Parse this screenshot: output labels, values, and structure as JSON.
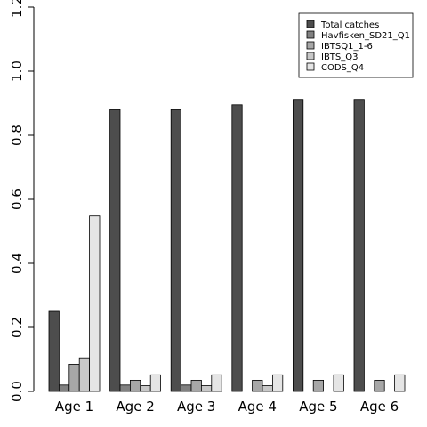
{
  "chart_data": {
    "type": "bar",
    "title": "",
    "xlabel": "",
    "ylabel": "",
    "ylim": [
      0,
      1.2
    ],
    "yticks": [
      "0.0",
      "0.2",
      "0.4",
      "0.6",
      "0.8",
      "1.0",
      "1.2"
    ],
    "categories": [
      "Age 1",
      "Age 2",
      "Age 3",
      "Age 4",
      "Age 5",
      "Age 6"
    ],
    "legend_position": "top-right",
    "series": [
      {
        "name": "Total catches",
        "color": "#4d4d4d",
        "values": [
          0.25,
          0.88,
          0.88,
          0.895,
          0.912,
          0.912
        ]
      },
      {
        "name": "Havfisken_SD21_Q1",
        "color": "#818181",
        "values": [
          0.02,
          0.02,
          0.02,
          0,
          0,
          0
        ]
      },
      {
        "name": "IBTSQ1_1-6",
        "color": "#a7a7a7",
        "values": [
          0.085,
          0.035,
          0.035,
          0.035,
          0.035,
          0.035
        ]
      },
      {
        "name": "IBTS_Q3",
        "color": "#c8c8c8",
        "values": [
          0.105,
          0.018,
          0.018,
          0.018,
          0,
          0
        ]
      },
      {
        "name": "CODS_Q4",
        "color": "#e5e5e5",
        "values": [
          0.548,
          0.052,
          0.052,
          0.052,
          0.052,
          0.052
        ]
      }
    ]
  }
}
